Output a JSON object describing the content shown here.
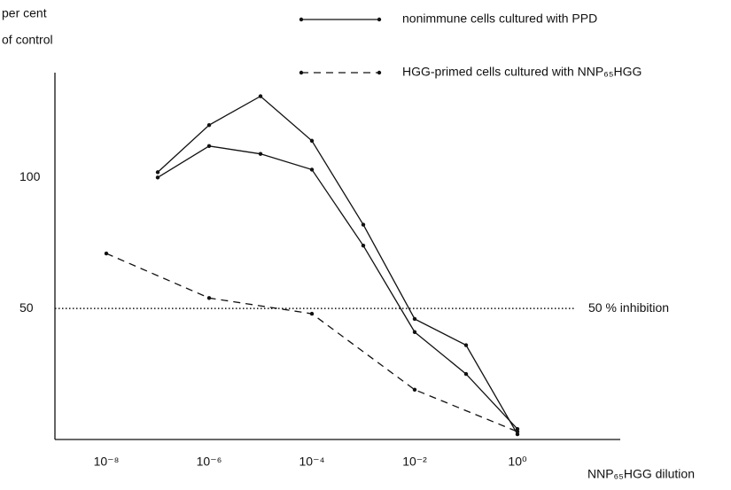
{
  "chart_data": {
    "type": "line",
    "ylabel": [
      "per cent",
      "of control"
    ],
    "xlabel": "NNP₆₅HGG dilution",
    "xscale": "log",
    "xlim": [
      1e-09,
      100
    ],
    "ylim": [
      0,
      140
    ],
    "xticks": [
      {
        "value": 1e-08,
        "label": "10⁻⁸"
      },
      {
        "value": 1e-06,
        "label": "10⁻⁶"
      },
      {
        "value": 0.0001,
        "label": "10⁻⁴"
      },
      {
        "value": 0.01,
        "label": "10⁻²"
      },
      {
        "value": 1,
        "label": "10⁰"
      }
    ],
    "yticks": [
      50,
      100
    ],
    "grid": false,
    "series": [
      {
        "name": "nonimmune cells cultured with PPD",
        "color": "#111111",
        "dash": false,
        "x": [
          1e-07,
          1e-06,
          1e-05,
          0.0001,
          0.001,
          0.01,
          0.1,
          1
        ],
        "values": [
          102,
          120,
          131,
          114,
          82,
          46,
          36,
          2
        ]
      },
      {
        "color": "#111111",
        "dash": false,
        "x": [
          1e-07,
          1e-06,
          1e-05,
          0.0001,
          0.001,
          0.01,
          0.1,
          1
        ],
        "values": [
          100,
          112,
          109,
          103,
          74,
          41,
          25,
          4
        ]
      },
      {
        "name": "HGG-primed cells cultured with NNP₆₅HGG",
        "color": "#111111",
        "dash": true,
        "x": [
          1e-08,
          1e-06,
          0.0001,
          0.01,
          1
        ],
        "values": [
          71,
          54,
          48,
          19,
          3
        ]
      }
    ],
    "annotation": {
      "text": "50 % inhibition",
      "y": 50
    }
  }
}
